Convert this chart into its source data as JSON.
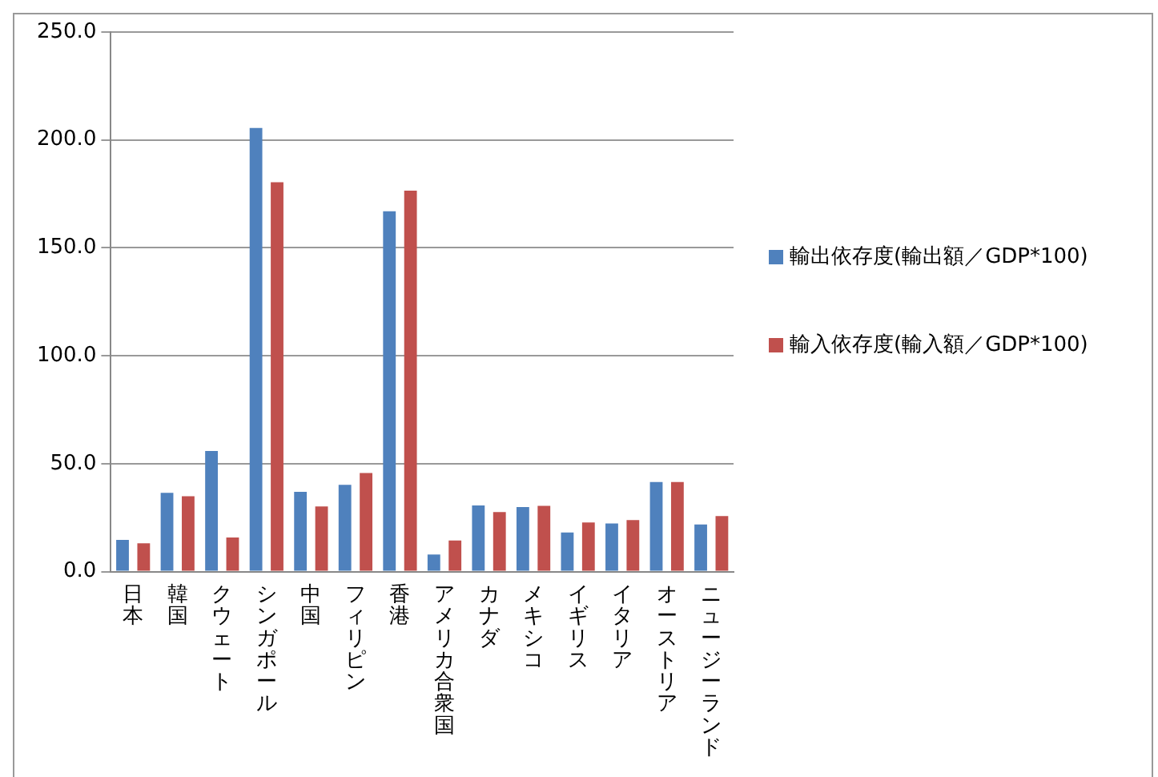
{
  "chart_data": {
    "type": "bar",
    "categories": [
      "日本",
      "韓国",
      "クウェート",
      "シンガポール",
      "中国",
      "フィリピン",
      "香港",
      "アメリカ合衆国",
      "カナダ",
      "メキシコ",
      "イギリス",
      "イタリア",
      "オーストリア",
      "ニュージーランド"
    ],
    "series": [
      {
        "name": "輸出依存度(輸出額／GDP*100)",
        "color": "#4f81bd",
        "values": [
          14.7,
          36.5,
          55.9,
          205.6,
          37.0,
          40.2,
          167.0,
          7.9,
          30.7,
          29.9,
          18.1,
          22.3,
          41.5,
          21.8
        ]
      },
      {
        "name": "輸入依存度(輸入額／GDP*100)",
        "color": "#c0504d",
        "values": [
          13.1,
          34.9,
          15.8,
          180.4,
          30.2,
          45.7,
          176.5,
          14.4,
          27.6,
          30.5,
          22.8,
          23.9,
          41.5,
          25.7
        ]
      }
    ],
    "ylim": [
      0,
      250
    ],
    "yticks": [
      {
        "value": 0,
        "label": "0.0"
      },
      {
        "value": 50,
        "label": "50.0"
      },
      {
        "value": 100,
        "label": "100.0"
      },
      {
        "value": 150,
        "label": "150.0"
      },
      {
        "value": 200,
        "label": "200.0"
      },
      {
        "value": 250,
        "label": "250.0"
      }
    ],
    "grid": "y",
    "legend": "right"
  }
}
